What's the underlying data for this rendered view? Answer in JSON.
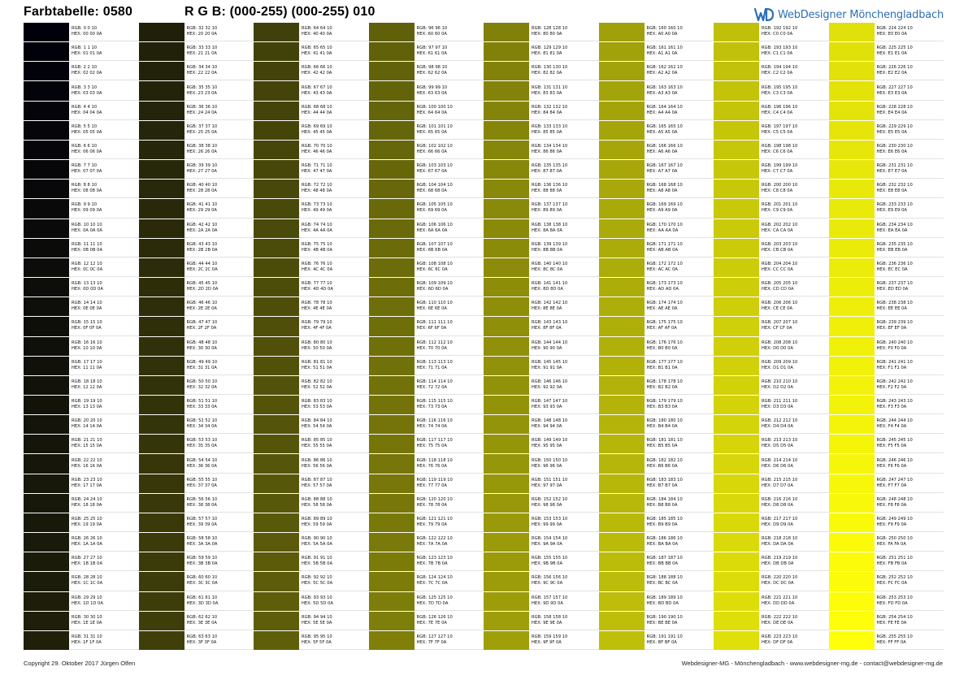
{
  "header": {
    "title": "Farbtabelle: 0580",
    "subtitle": "R G B: (000-255) (000-255) 010",
    "logo_text": "WebDesigner Mönchengladbach",
    "logo_color": "#2d6fb5"
  },
  "table": {
    "blue_value": 10,
    "gray_from": 0,
    "gray_to": 255,
    "columns": 8,
    "rows_per_column": 32,
    "rgb_prefix": "RGB:",
    "hex_prefix": "HEX:",
    "swatch_colors_note": "each swatch shows rgb(n, n, 10) for n in 0..255"
  },
  "footer": {
    "copyright": "Copyright 29. Oktober 2017 Jürgen Olfen",
    "contact": "Webdesigner-MG - Mönchengladbach - www.webdesigner-mg.de - contact@webdesigner-mg.de"
  }
}
